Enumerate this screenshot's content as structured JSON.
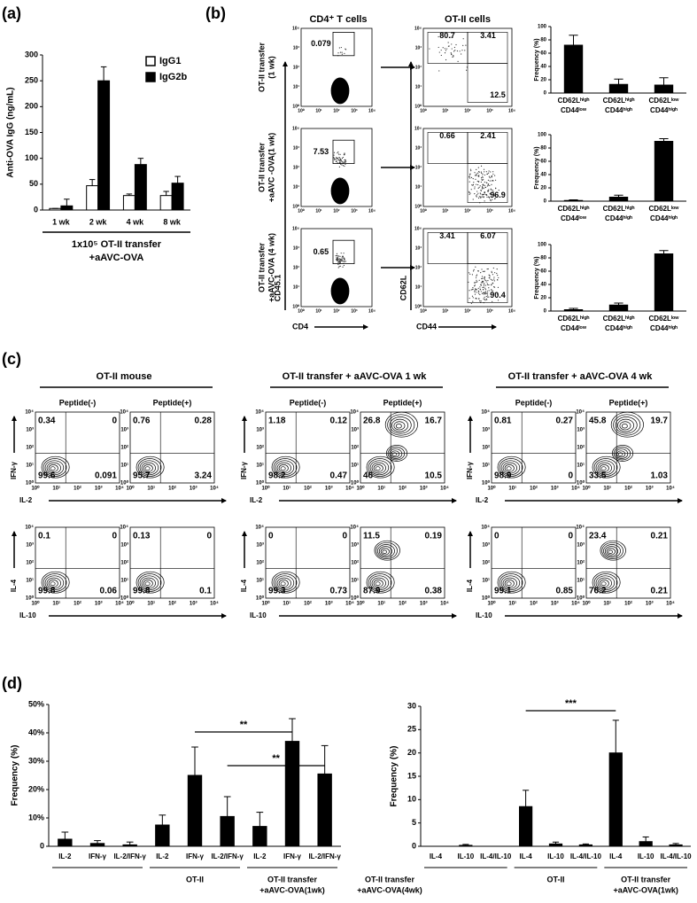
{
  "panel_labels": [
    "(a)",
    "(b)",
    "(c)",
    "(d)"
  ],
  "chart_data": [
    {
      "type": "bar",
      "ylabel": "Anti-OVA IgG (ng/mL)",
      "categories": [
        "1 wk",
        "2 wk",
        "4 wk",
        "8 wk"
      ],
      "group_label": [
        "1x10⁵ OT-II transfer",
        "+aAVC-OVA"
      ],
      "series": [
        {
          "name": "IgG1",
          "color": "#ffffff",
          "values": [
            3,
            47,
            28,
            28
          ],
          "errors": [
            0,
            12,
            3,
            8
          ]
        },
        {
          "name": "IgG2b",
          "color": "#000000",
          "values": [
            8,
            250,
            88,
            52
          ],
          "errors": [
            13,
            27,
            12,
            13
          ]
        }
      ],
      "ylim": [
        0,
        300
      ],
      "yticks": [
        0,
        50,
        100,
        150,
        200,
        250,
        300
      ]
    },
    {
      "type": "bar",
      "ylabel": "Frequency (%)",
      "categories": [
        [
          "CD62Lʰⁱᵍʰ",
          "CD44ˡᵒʷ"
        ],
        [
          "CD62Lʰⁱᵍʰ",
          "CD44ʰⁱᵍʰ"
        ],
        [
          "CD62Lˡᵒʷ",
          "CD44ʰⁱᵍʰ"
        ]
      ],
      "values": [
        72,
        13,
        12
      ],
      "errors": [
        15,
        8,
        11
      ],
      "color": "#000000",
      "ylim": [
        0,
        100
      ],
      "yticks": [
        0,
        20,
        40,
        60,
        80,
        100
      ]
    },
    {
      "type": "bar",
      "ylabel": "Frequency (%)",
      "categories": [
        [
          "CD62Lʰⁱᵍʰ",
          "CD44ˡᵒʷ"
        ],
        [
          "CD62Lʰⁱᵍʰ",
          "CD44ʰⁱᵍʰ"
        ],
        [
          "CD62Lˡᵒʷ",
          "CD44ʰⁱᵍʰ"
        ]
      ],
      "values": [
        1,
        6,
        90
      ],
      "errors": [
        1,
        3,
        4
      ],
      "color": "#000000",
      "ylim": [
        0,
        100
      ],
      "yticks": [
        0,
        20,
        40,
        60,
        80,
        100
      ]
    },
    {
      "type": "bar",
      "ylabel": "Frequency (%)",
      "categories": [
        [
          "CD62Lʰⁱᵍʰ",
          "CD44ˡᵒʷ"
        ],
        [
          "CD62Lʰⁱᵍʰ",
          "CD44ʰⁱᵍʰ"
        ],
        [
          "CD62Lˡᵒʷ",
          "CD44ʰⁱᵍʰ"
        ]
      ],
      "values": [
        2,
        9,
        86
      ],
      "errors": [
        2,
        3,
        5
      ],
      "color": "#000000",
      "ylim": [
        0,
        100
      ],
      "yticks": [
        0,
        20,
        40,
        60,
        80,
        100
      ]
    },
    {
      "type": "bar",
      "ylabel": "Frequency (%)",
      "categories": [
        "IL-2",
        "IFN-γ",
        "IL-2/IFN-γ",
        "IL-2",
        "IFN-γ",
        "IL-2/IFN-γ",
        "IL-2",
        "IFN-γ",
        "IL-2/IFN-γ"
      ],
      "values": [
        2.5,
        1,
        0.5,
        7.5,
        25,
        10.5,
        7,
        37,
        25.5
      ],
      "errors": [
        2.5,
        1,
        1,
        3.5,
        10,
        7,
        5,
        8,
        10
      ],
      "color": "#000000",
      "ylim": [
        0,
        50
      ],
      "yticks": [
        0,
        {
          "value": 10,
          "label": "10%"
        },
        {
          "value": 20,
          "label": "20%"
        },
        {
          "value": 30,
          "label": "30%"
        },
        {
          "value": 40,
          "label": "40%"
        },
        {
          "value": 50,
          "label": "50%"
        }
      ],
      "groups": [
        [
          "OT-II"
        ],
        [
          "OT-II transfer",
          "+aAVC-OVA(1wk)"
        ],
        [
          "OT-II transfer",
          "+aAVC-OVA(4wk)"
        ]
      ],
      "annotations": [
        "**",
        "**"
      ]
    },
    {
      "type": "bar",
      "ylabel": "Frequency (%)",
      "categories": [
        "IL-4",
        "IL-10",
        "IL-4/IL-10",
        "IL-4",
        "IL-10",
        "IL-4/IL-10",
        "IL-4",
        "IL-10",
        "IL-4/IL-10"
      ],
      "values": [
        0,
        0.2,
        0,
        8.5,
        0.5,
        0.3,
        20,
        1,
        0.3
      ],
      "errors": [
        0,
        0.2,
        0,
        3.5,
        0.4,
        0.2,
        7,
        1,
        0.3
      ],
      "color": "#000000",
      "ylim": [
        0,
        30
      ],
      "yticks": [
        0,
        5,
        10,
        15,
        20,
        25,
        30
      ],
      "groups": [
        [
          "OT-II"
        ],
        [
          "OT-II transfer",
          "+aAVC-OVA(1wk)"
        ],
        [
          "OT-II transfer",
          "+aAVC-OVA(4wk)"
        ]
      ],
      "annotations": [
        "***"
      ]
    }
  ],
  "flow_ticks": [
    "10⁰",
    "10¹",
    "10²",
    "10³",
    "10⁴"
  ],
  "flow_b": {
    "columns": [
      "CD4⁺ T cells",
      "OT-II cells"
    ],
    "rows": [
      [
        "OT-II transfer",
        "(1 wk)"
      ],
      [
        "OT-II transfer",
        "+aAVC -OVA(1 wk)"
      ],
      [
        "OT-II transfer",
        "+aAVC-OVA (4 wk)"
      ]
    ],
    "gates": [
      "0.079",
      "7.53",
      "0.65"
    ],
    "quadrants": [
      [
        "80.7",
        "3.41",
        "12.5"
      ],
      [
        "0.66",
        "2.41",
        "96.9"
      ],
      [
        "3.41",
        "6.07",
        "90.4"
      ]
    ],
    "axes": {
      "left_y": "CD45.1",
      "left_x": "CD4",
      "right_y": "CD62L",
      "right_x": "CD44"
    }
  },
  "flow_c": {
    "row_axes": [
      [
        "IFN-γ",
        "IL-2"
      ],
      [
        "IL-4",
        "IL-10"
      ]
    ],
    "groups": [
      {
        "title": "OT-II mouse",
        "conditions": [
          "Peptide(-)",
          "Peptide(+)"
        ],
        "rows": [
          [
            [
              "0.34",
              "0",
              "99.6",
              "0.091"
            ],
            [
              "0.76",
              "0.28",
              "95.7",
              "3.24"
            ]
          ],
          [
            [
              "0.1",
              "0",
              "99.8",
              "0.06"
            ],
            [
              "0.13",
              "0",
              "99.8",
              "0.1"
            ]
          ]
        ]
      },
      {
        "title": "OT-II transfer + aAVC-OVA 1 wk",
        "conditions": [
          "Peptide(-)",
          "Peptide(+)"
        ],
        "rows": [
          [
            [
              "1.18",
              "0.12",
              "98.2",
              "0.47"
            ],
            [
              "26.8",
              "16.7",
              "46",
              "10.5"
            ]
          ],
          [
            [
              "0",
              "0",
              "99.3",
              "0.73"
            ],
            [
              "11.5",
              "0.19",
              "87.9",
              "0.38"
            ]
          ]
        ]
      },
      {
        "title": "OT-II transfer + aAVC-OVA 4 wk",
        "conditions": [
          "Peptide(-)",
          "Peptide(+)"
        ],
        "rows": [
          [
            [
              "0.81",
              "0.27",
              "98.9",
              "0"
            ],
            [
              "45.8",
              "19.7",
              "33.5",
              "1.03"
            ]
          ],
          [
            [
              "0",
              "0",
              "99.1",
              "0.85"
            ],
            [
              "23.4",
              "0.21",
              "76.2",
              "0.21"
            ]
          ]
        ]
      }
    ]
  }
}
